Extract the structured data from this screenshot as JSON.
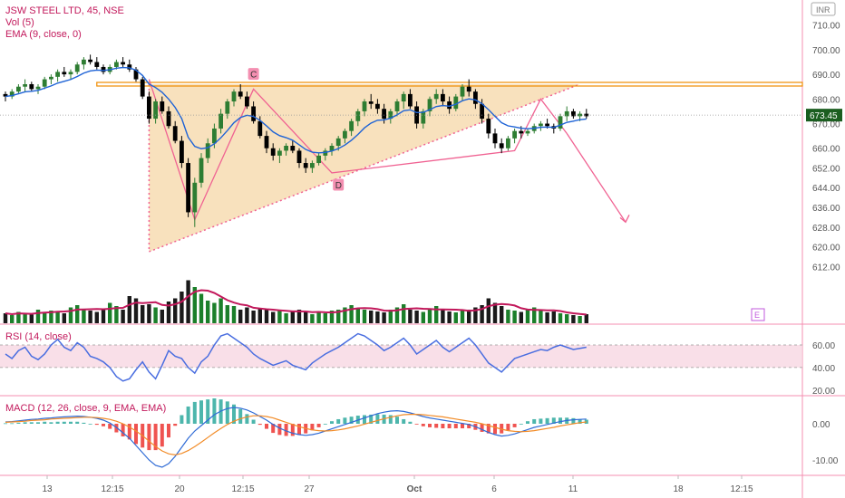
{
  "chart_data": {
    "type": "candlestick",
    "header": {
      "symbol_line": "JSW STEEL LTD, 45, NSE",
      "vol_label": "Vol (5)",
      "ema_label": "EMA (9, close, 0)"
    },
    "currency": "INR",
    "last_price": "673.45",
    "price_axis": {
      "ticks": [
        "710.00",
        "700.00",
        "690.00",
        "680.00",
        "670.00",
        "660.00",
        "652.00",
        "644.00",
        "636.00",
        "628.00",
        "620.00",
        "612.00"
      ]
    },
    "x_axis": {
      "ticks": [
        "13",
        "12:15",
        "20",
        "12:15",
        "27",
        "Oct",
        "6",
        "11",
        "18",
        "12:15"
      ]
    },
    "pattern": {
      "type": "ascending triangle",
      "resistance": 686,
      "labels": [
        "C",
        "D"
      ],
      "event_marker": "E"
    },
    "candles": [
      [
        682,
        683,
        679,
        681
      ],
      [
        681,
        684,
        680,
        683
      ],
      [
        683,
        686,
        682,
        685
      ],
      [
        685,
        688,
        683,
        686
      ],
      [
        686,
        687,
        683,
        684
      ],
      [
        684,
        686,
        682,
        685
      ],
      [
        685,
        689,
        684,
        688
      ],
      [
        688,
        690,
        686,
        689
      ],
      [
        689,
        692,
        687,
        691
      ],
      [
        691,
        693,
        689,
        690
      ],
      [
        690,
        692,
        688,
        691
      ],
      [
        691,
        695,
        690,
        694
      ],
      [
        694,
        697,
        692,
        696
      ],
      [
        696,
        698,
        694,
        695
      ],
      [
        695,
        697,
        692,
        693
      ],
      [
        693,
        694,
        690,
        691
      ],
      [
        691,
        694,
        690,
        693
      ],
      [
        693,
        696,
        692,
        695
      ],
      [
        695,
        697,
        693,
        694
      ],
      [
        694,
        696,
        691,
        692
      ],
      [
        692,
        693,
        687,
        688
      ],
      [
        688,
        689,
        680,
        681
      ],
      [
        681,
        683,
        670,
        672
      ],
      [
        672,
        680,
        670,
        679
      ],
      [
        679,
        681,
        674,
        675
      ],
      [
        675,
        677,
        668,
        669
      ],
      [
        669,
        671,
        662,
        663
      ],
      [
        663,
        665,
        652,
        654
      ],
      [
        654,
        656,
        632,
        634
      ],
      [
        634,
        648,
        628,
        646
      ],
      [
        646,
        658,
        644,
        656
      ],
      [
        656,
        664,
        654,
        662
      ],
      [
        662,
        670,
        660,
        668
      ],
      [
        668,
        676,
        666,
        674
      ],
      [
        674,
        680,
        672,
        679
      ],
      [
        679,
        684,
        677,
        683
      ],
      [
        683,
        686,
        680,
        681
      ],
      [
        681,
        683,
        676,
        677
      ],
      [
        677,
        679,
        670,
        671
      ],
      [
        671,
        673,
        664,
        665
      ],
      [
        665,
        667,
        658,
        660
      ],
      [
        660,
        662,
        655,
        657
      ],
      [
        657,
        660,
        654,
        659
      ],
      [
        659,
        662,
        657,
        661
      ],
      [
        661,
        663,
        658,
        659
      ],
      [
        659,
        660,
        652,
        654
      ],
      [
        654,
        656,
        650,
        652
      ],
      [
        652,
        655,
        650,
        654
      ],
      [
        654,
        658,
        653,
        657
      ],
      [
        657,
        660,
        655,
        659
      ],
      [
        659,
        662,
        657,
        661
      ],
      [
        661,
        665,
        659,
        664
      ],
      [
        664,
        668,
        662,
        667
      ],
      [
        667,
        672,
        665,
        671
      ],
      [
        671,
        676,
        669,
        675
      ],
      [
        675,
        680,
        673,
        679
      ],
      [
        679,
        682,
        676,
        678
      ],
      [
        678,
        680,
        674,
        676
      ],
      [
        676,
        678,
        670,
        672
      ],
      [
        672,
        676,
        670,
        675
      ],
      [
        675,
        680,
        673,
        679
      ],
      [
        679,
        683,
        676,
        682
      ],
      [
        682,
        684,
        676,
        677
      ],
      [
        677,
        679,
        668,
        670
      ],
      [
        670,
        676,
        668,
        675
      ],
      [
        675,
        681,
        673,
        680
      ],
      [
        680,
        684,
        678,
        682
      ],
      [
        682,
        684,
        677,
        679
      ],
      [
        679,
        681,
        674,
        676
      ],
      [
        676,
        682,
        675,
        681
      ],
      [
        681,
        686,
        679,
        685
      ],
      [
        685,
        688,
        681,
        683
      ],
      [
        683,
        684,
        676,
        678
      ],
      [
        678,
        680,
        670,
        672
      ],
      [
        672,
        674,
        664,
        666
      ],
      [
        666,
        668,
        660,
        662
      ],
      [
        662,
        664,
        658,
        660
      ],
      [
        660,
        665,
        659,
        664
      ],
      [
        664,
        668,
        662,
        667
      ],
      [
        667,
        669,
        664,
        666
      ],
      [
        666,
        668,
        665,
        667
      ],
      [
        667,
        670,
        666,
        669
      ],
      [
        669,
        671,
        667,
        670
      ],
      [
        670,
        672,
        668,
        669
      ],
      [
        669,
        670,
        666,
        668
      ],
      [
        668,
        674,
        667,
        673
      ],
      [
        673,
        677,
        671,
        675
      ],
      [
        675,
        676,
        672,
        673
      ],
      [
        673,
        675,
        671,
        674
      ],
      [
        674,
        676,
        672,
        673
      ]
    ],
    "volume": [
      22,
      18,
      25,
      20,
      19,
      30,
      24,
      28,
      26,
      22,
      35,
      40,
      30,
      28,
      25,
      32,
      45,
      38,
      30,
      60,
      55,
      40,
      42,
      35,
      30,
      48,
      55,
      70,
      95,
      80,
      65,
      50,
      45,
      55,
      40,
      38,
      30,
      35,
      28,
      32,
      30,
      25,
      28,
      22,
      26,
      30,
      24,
      20,
      25,
      22,
      28,
      30,
      35,
      40,
      32,
      30,
      28,
      26,
      24,
      30,
      35,
      42,
      30,
      28,
      25,
      32,
      38,
      30,
      26,
      24,
      28,
      30,
      35,
      40,
      55,
      45,
      38,
      30,
      28,
      25,
      30,
      35,
      28,
      24,
      26,
      22,
      20,
      18,
      16,
      20
    ],
    "rsi": {
      "label": "RSI (14, close)",
      "ticks": [
        "60.00",
        "40.00",
        "20.00"
      ],
      "values": [
        52,
        48,
        55,
        58,
        50,
        47,
        52,
        60,
        65,
        58,
        55,
        62,
        58,
        50,
        48,
        45,
        40,
        32,
        28,
        30,
        38,
        45,
        36,
        30,
        42,
        55,
        50,
        48,
        40,
        35,
        45,
        50,
        60,
        68,
        70,
        66,
        62,
        58,
        52,
        48,
        45,
        42,
        44,
        46,
        42,
        40,
        38,
        44,
        48,
        52,
        55,
        58,
        62,
        66,
        70,
        68,
        64,
        60,
        55,
        58,
        62,
        66,
        60,
        52,
        56,
        60,
        64,
        58,
        54,
        58,
        62,
        66,
        60,
        52,
        44,
        40,
        36,
        42,
        48,
        50,
        52,
        54,
        56,
        55,
        58,
        60,
        58,
        56,
        57,
        58
      ]
    },
    "macd": {
      "label": "MACD (12, 26, close, 9, EMA, EMA)",
      "ticks": [
        "0.00",
        "-10.00"
      ],
      "macd": [
        0.5,
        0.6,
        0.8,
        1.0,
        1.2,
        1.3,
        1.5,
        1.6,
        1.8,
        1.9,
        2.0,
        2.1,
        2.0,
        1.8,
        1.5,
        1.0,
        0.2,
        -1.0,
        -2.5,
        -4.0,
        -6.0,
        -8.0,
        -10.0,
        -11.5,
        -12.0,
        -11.0,
        -9.0,
        -6.5,
        -4.0,
        -2.0,
        -0.5,
        1.0,
        2.5,
        3.5,
        4.2,
        4.5,
        4.3,
        3.8,
        3.0,
        2.0,
        1.0,
        -0.2,
        -1.2,
        -2.0,
        -2.6,
        -3.0,
        -3.2,
        -3.0,
        -2.6,
        -2.0,
        -1.4,
        -0.8,
        -0.2,
        0.4,
        1.0,
        1.6,
        2.2,
        2.8,
        3.2,
        3.5,
        3.6,
        3.4,
        3.0,
        2.5,
        2.0,
        1.6,
        1.3,
        1.0,
        0.7,
        0.4,
        0.1,
        -0.2,
        -0.8,
        -1.6,
        -2.4,
        -3.0,
        -3.4,
        -3.2,
        -2.8,
        -2.2,
        -1.6,
        -1.0,
        -0.6,
        -0.2,
        0.2,
        0.6,
        0.9,
        1.1,
        1.2,
        1.3
      ],
      "signal": [
        0.4,
        0.5,
        0.6,
        0.7,
        0.9,
        1.0,
        1.1,
        1.3,
        1.4,
        1.5,
        1.6,
        1.7,
        1.8,
        1.8,
        1.7,
        1.5,
        1.2,
        0.7,
        0.0,
        -0.9,
        -2.0,
        -3.3,
        -4.8,
        -6.3,
        -7.5,
        -8.3,
        -8.6,
        -8.2,
        -7.4,
        -6.3,
        -5.1,
        -3.8,
        -2.5,
        -1.3,
        -0.2,
        0.7,
        1.4,
        1.9,
        2.2,
        2.2,
        2.0,
        1.6,
        1.0,
        0.4,
        -0.2,
        -0.8,
        -1.3,
        -1.7,
        -1.9,
        -2.0,
        -1.9,
        -1.7,
        -1.4,
        -1.0,
        -0.6,
        -0.1,
        0.4,
        0.9,
        1.4,
        1.8,
        2.2,
        2.5,
        2.6,
        2.6,
        2.5,
        2.3,
        2.1,
        1.9,
        1.6,
        1.3,
        1.0,
        0.7,
        0.4,
        0.0,
        -0.5,
        -1.0,
        -1.5,
        -1.9,
        -2.1,
        -2.2,
        -2.1,
        -1.9,
        -1.6,
        -1.3,
        -1.0,
        -0.6,
        -0.3,
        0.0,
        0.3,
        0.5
      ]
    },
    "colors": {
      "up": "#2e7d32",
      "down": "#000000",
      "ema": "#1e63d6",
      "vol_ma": "#c2185b",
      "pattern_fill": "#f6d7a7",
      "resistance": "#f08c00",
      "zigzag": "#f06292",
      "rsi_band": "#f8d7e2",
      "rsi_line": "#4a6ee0",
      "macd_line": "#2f6bd6",
      "signal_line": "#f28c28",
      "hist_pos": "#4db6ac",
      "hist_neg": "#ef5350",
      "label_text": "#c2185b",
      "last_price_bg": "#1b5e20"
    }
  }
}
